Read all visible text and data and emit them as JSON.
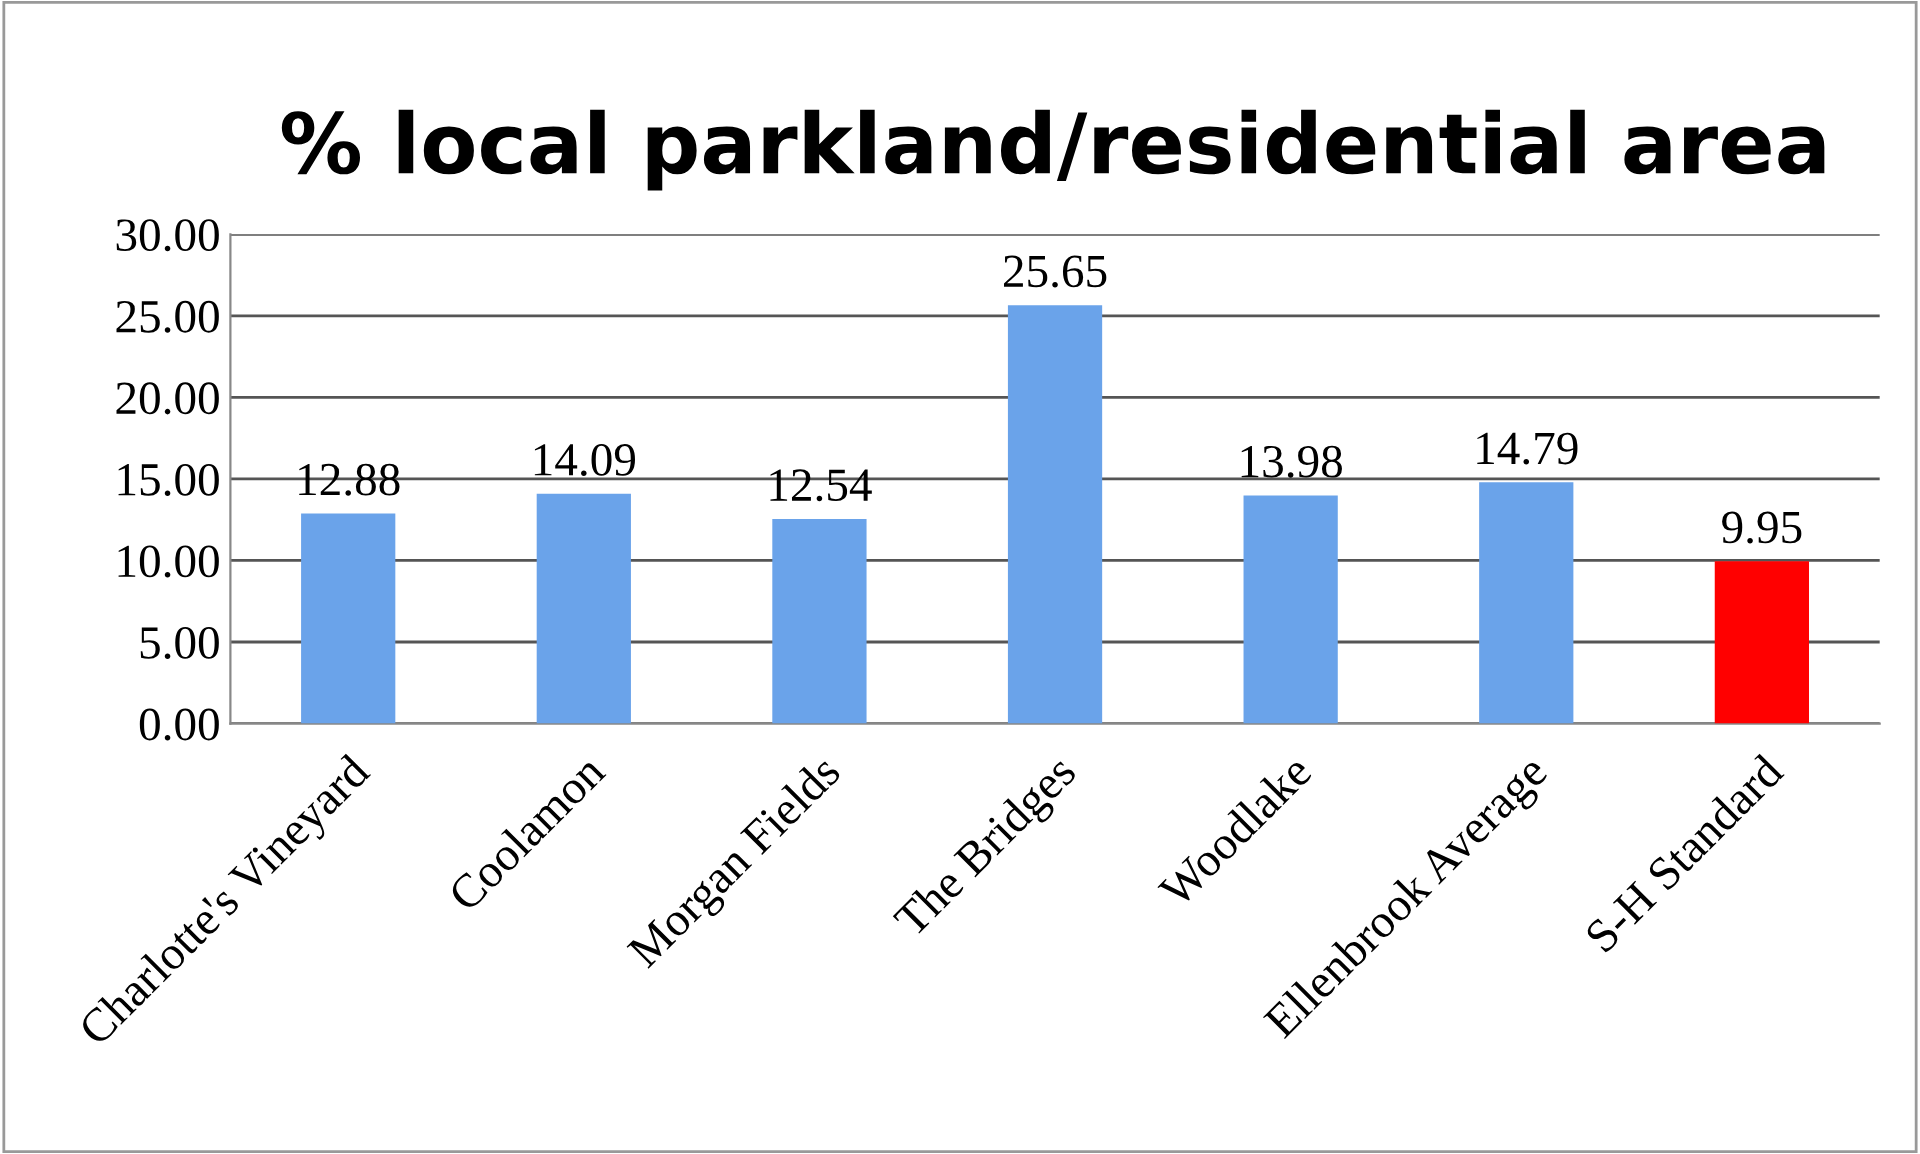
{
  "chart_data": {
    "type": "bar",
    "title": "% local parkland/residential area",
    "categories": [
      "Charlotte's Vineyard",
      "Coolamon",
      "Morgan Fields",
      "The Bridges",
      "Woodlake",
      "Ellenbrook Average",
      "S-H Standard"
    ],
    "values": [
      12.88,
      14.09,
      12.54,
      25.65,
      13.98,
      14.79,
      9.95
    ],
    "colors": [
      "#6aa3ea",
      "#6aa3ea",
      "#6aa3ea",
      "#6aa3ea",
      "#6aa3ea",
      "#6aa3ea",
      "#ff0000"
    ],
    "ylim": [
      0,
      30
    ],
    "yticks": [
      {
        "value": 0,
        "label": "0.00"
      },
      {
        "value": 5,
        "label": "5.00"
      },
      {
        "value": 10,
        "label": "10.00"
      },
      {
        "value": 15,
        "label": "15.00"
      },
      {
        "value": 20,
        "label": "20.00"
      },
      {
        "value": 25,
        "label": "25.00"
      },
      {
        "value": 30,
        "label": "30.00"
      }
    ],
    "grid": "y",
    "data_labels": true
  }
}
